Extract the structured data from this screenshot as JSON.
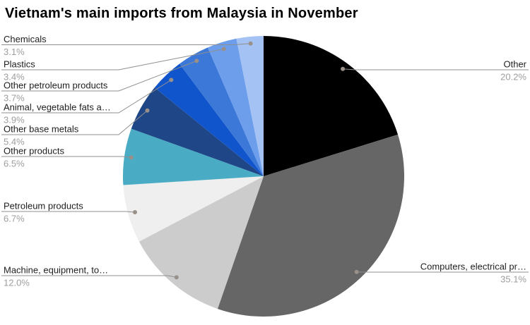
{
  "title": "Vietnam's main imports from Malaysia in November",
  "chart_data": {
    "type": "pie",
    "title": "Vietnam's main imports from Malaysia in November",
    "legend_position": "none",
    "label_style": "outside-callouts-with-percent",
    "start_angle_deg": 0,
    "direction": "clockwise",
    "slices": [
      {
        "label": "Other",
        "value": 20.2,
        "pct_label": "20.2%",
        "color": "#000000",
        "side": "right"
      },
      {
        "label": "Computers, electrical pr…",
        "value": 35.1,
        "pct_label": "35.1%",
        "color": "#666666",
        "side": "right"
      },
      {
        "label": "Machine, equipment, to…",
        "value": 12.0,
        "pct_label": "12.0%",
        "color": "#cccccc",
        "side": "left"
      },
      {
        "label": "Petroleum products",
        "value": 6.7,
        "pct_label": "6.7%",
        "color": "#efefef",
        "side": "left"
      },
      {
        "label": "Other products",
        "value": 6.5,
        "pct_label": "6.5%",
        "color": "#4aacc4",
        "side": "left"
      },
      {
        "label": "Other base metals",
        "value": 5.4,
        "pct_label": "5.4%",
        "color": "#1f4687",
        "side": "left"
      },
      {
        "label": "Animal, vegetable fats a…",
        "value": 3.9,
        "pct_label": "3.9%",
        "color": "#1155cc",
        "side": "left"
      },
      {
        "label": "Other petroleum products",
        "value": 3.7,
        "pct_label": "3.7%",
        "color": "#3c78d8",
        "side": "left"
      },
      {
        "label": "Plastics",
        "value": 3.4,
        "pct_label": "3.4%",
        "color": "#6d9eeb",
        "side": "left"
      },
      {
        "label": "Chemicals",
        "value": 3.1,
        "pct_label": "3.1%",
        "color": "#a4c2f4",
        "side": "left"
      }
    ]
  }
}
